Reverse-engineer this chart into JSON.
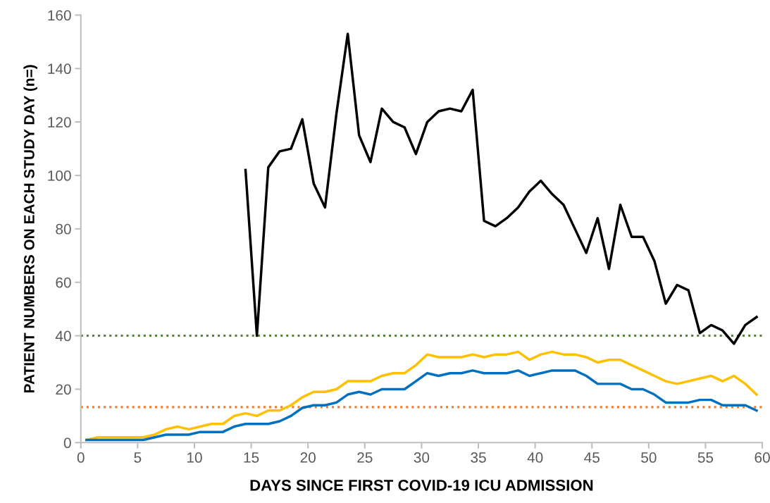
{
  "chart_data": {
    "type": "line",
    "xlabel": "DAYS SINCE FIRST COVID-19 ICU ADMISSION",
    "ylabel": "PATIENT NUMBERS ON EACH STUDY DAY (n=)",
    "xlim": [
      0,
      60
    ],
    "xticks": [
      0,
      5,
      10,
      15,
      20,
      25,
      30,
      35,
      40,
      45,
      50,
      55,
      60
    ],
    "ylim": [
      0,
      160
    ],
    "yticks": [
      0,
      20,
      40,
      60,
      80,
      100,
      120,
      140,
      160
    ],
    "grid": false,
    "legend": false,
    "marker": "none",
    "line_style": "solid",
    "ref_lines": [
      {
        "axis": "y",
        "value": 40,
        "color": "#548235",
        "line_style": "dotted"
      },
      {
        "axis": "y",
        "value": 13.3,
        "color": "#ed7d31",
        "line_style": "dotted"
      }
    ],
    "series": [
      {
        "color": "#000000",
        "x": [
          14.5,
          15.5,
          16.5,
          17.5,
          18.5,
          19.5,
          20.5,
          21.5,
          22.5,
          23.5,
          24.5,
          25.5,
          26.5,
          27.5,
          28.5,
          29.5,
          30.5,
          31.5,
          32.5,
          33.5,
          34.5,
          35.5,
          36.5,
          37.5,
          38.5,
          39.5,
          40.5,
          41.5,
          42.5,
          43.5,
          44.5,
          45.5,
          46.5,
          47.5,
          48.5,
          49.5,
          50.5,
          51.5,
          52.5,
          53.5,
          54.5,
          55.5,
          56.5,
          57.5,
          58.5,
          59.5
        ],
        "values": [
          102,
          40,
          103,
          109,
          110,
          121,
          97,
          88,
          123,
          153,
          115,
          105,
          125,
          120,
          118,
          108,
          120,
          124,
          125,
          124,
          132,
          83,
          81,
          84,
          88,
          94,
          98,
          93,
          89,
          80,
          71,
          84,
          65,
          89,
          77,
          77,
          68,
          52,
          59,
          57,
          41,
          44,
          42,
          37,
          44,
          47
        ]
      },
      {
        "color": "#ffc000",
        "x": [
          0.5,
          1.5,
          2.5,
          3.5,
          4.5,
          5.5,
          6.5,
          7.5,
          8.5,
          9.5,
          10.5,
          11.5,
          12.5,
          13.5,
          14.5,
          15.5,
          16.5,
          17.5,
          18.5,
          19.5,
          20.5,
          21.5,
          22.5,
          23.5,
          24.5,
          25.5,
          26.5,
          27.5,
          28.5,
          29.5,
          30.5,
          31.5,
          32.5,
          33.5,
          34.5,
          35.5,
          36.5,
          37.5,
          38.5,
          39.5,
          40.5,
          41.5,
          42.5,
          43.5,
          44.5,
          45.5,
          46.5,
          47.5,
          48.5,
          49.5,
          50.5,
          51.5,
          52.5,
          53.5,
          54.5,
          55.5,
          56.5,
          57.5,
          58.5,
          59.5
        ],
        "values": [
          1,
          2,
          2,
          2,
          2,
          2,
          3,
          5,
          6,
          5,
          6,
          7,
          7,
          10,
          11,
          10,
          12,
          12,
          14,
          17,
          19,
          19,
          20,
          23,
          23,
          23,
          25,
          26,
          26,
          29,
          33,
          32,
          32,
          32,
          33,
          32,
          33,
          33,
          34,
          31,
          33,
          34,
          33,
          33,
          32,
          30,
          31,
          31,
          29,
          27,
          25,
          23,
          22,
          23,
          24,
          25,
          23,
          25,
          22,
          18
        ]
      },
      {
        "color": "#0070c0",
        "x": [
          0.5,
          1.5,
          2.5,
          3.5,
          4.5,
          5.5,
          6.5,
          7.5,
          8.5,
          9.5,
          10.5,
          11.5,
          12.5,
          13.5,
          14.5,
          15.5,
          16.5,
          17.5,
          18.5,
          19.5,
          20.5,
          21.5,
          22.5,
          23.5,
          24.5,
          25.5,
          26.5,
          27.5,
          28.5,
          29.5,
          30.5,
          31.5,
          32.5,
          33.5,
          34.5,
          35.5,
          36.5,
          37.5,
          38.5,
          39.5,
          40.5,
          41.5,
          42.5,
          43.5,
          44.5,
          45.5,
          46.5,
          47.5,
          48.5,
          49.5,
          50.5,
          51.5,
          52.5,
          53.5,
          54.5,
          55.5,
          56.5,
          57.5,
          58.5,
          59.5
        ],
        "values": [
          1,
          1,
          1,
          1,
          1,
          1,
          2,
          3,
          3,
          3,
          4,
          4,
          4,
          6,
          7,
          7,
          7,
          8,
          10,
          13,
          14,
          14,
          15,
          18,
          19,
          18,
          20,
          20,
          20,
          23,
          26,
          25,
          26,
          26,
          27,
          26,
          26,
          26,
          27,
          25,
          26,
          27,
          27,
          27,
          25,
          22,
          22,
          22,
          20,
          20,
          18,
          15,
          15,
          15,
          16,
          16,
          14,
          14,
          14,
          12
        ]
      }
    ]
  }
}
